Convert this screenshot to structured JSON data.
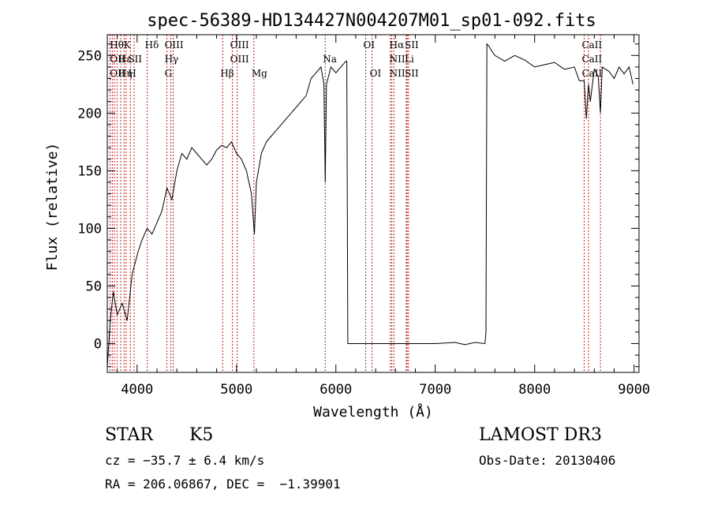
{
  "chart_data": {
    "type": "line",
    "title": "spec-56389-HD134427N004207M01_sp01-092.fits",
    "xlabel": "Wavelength (Å)",
    "ylabel": "Flux (relative)",
    "xlim": [
      3700,
      9050
    ],
    "ylim": [
      -25,
      268
    ],
    "x_ticks": [
      4000,
      5000,
      6000,
      7000,
      8000,
      9000
    ],
    "y_ticks": [
      0,
      50,
      100,
      150,
      200,
      250
    ],
    "grid": false,
    "series": [
      {
        "x": [
          3700,
          3730,
          3760,
          3800,
          3850,
          3900,
          3950,
          3980,
          4010,
          4050,
          4100,
          4150,
          4200,
          4250,
          4300,
          4350,
          4400,
          4450,
          4500,
          4550,
          4600,
          4650,
          4700,
          4750,
          4800,
          4850,
          4900,
          4950,
          5000,
          5050,
          5100,
          5150,
          5180,
          5200,
          5250,
          5300,
          5350,
          5400,
          5450,
          5500,
          5550,
          5600,
          5650,
          5700,
          5750,
          5800,
          5850,
          5880,
          5893,
          5905,
          5950,
          6000,
          6050,
          6100,
          6110,
          6120,
          6150,
          6500,
          7000,
          7200,
          7300,
          7400,
          7500,
          7510,
          7520,
          7540,
          7560,
          7600,
          7700,
          7800,
          7900,
          8000,
          8100,
          8200,
          8300,
          8400,
          8450,
          8498,
          8520,
          8542,
          8560,
          8600,
          8640,
          8662,
          8680,
          8750,
          8800,
          8850,
          8900,
          8950,
          8990
        ],
        "values": [
          -20,
          20,
          45,
          25,
          35,
          20,
          60,
          70,
          80,
          90,
          100,
          95,
          105,
          115,
          135,
          125,
          150,
          165,
          160,
          170,
          165,
          160,
          155,
          160,
          168,
          172,
          170,
          175,
          165,
          160,
          150,
          130,
          95,
          140,
          165,
          175,
          180,
          185,
          190,
          195,
          200,
          205,
          210,
          215,
          230,
          235,
          240,
          225,
          140,
          225,
          240,
          235,
          240,
          245,
          245,
          0,
          0,
          0,
          0,
          1,
          -1,
          1,
          0,
          10,
          260,
          258,
          255,
          250,
          245,
          250,
          246,
          240,
          242,
          244,
          238,
          240,
          228,
          228,
          195,
          225,
          210,
          238,
          232,
          200,
          240,
          236,
          230,
          240,
          234,
          240,
          225
        ]
      }
    ],
    "line_labels": [
      {
        "x": 3750,
        "lines": [
          "Hθ",
          "OII",
          "OII"
        ]
      },
      {
        "x": 3834,
        "lines": [
          "",
          "Hε",
          "Hη"
        ]
      },
      {
        "x": 3889,
        "lines": [
          "K",
          "",
          ""
        ]
      },
      {
        "x": 3933,
        "lines": [
          "",
          "SII",
          "H"
        ]
      },
      {
        "x": 4102,
        "lines": [
          "Hδ",
          "",
          ""
        ]
      },
      {
        "x": 4300,
        "lines": [
          "OIII",
          "Hγ",
          "G"
        ]
      },
      {
        "x": 4861,
        "lines": [
          "",
          "",
          "Hβ"
        ]
      },
      {
        "x": 4959,
        "lines": [
          "OIII",
          "OIII",
          ""
        ]
      },
      {
        "x": 5175,
        "lines": [
          "",
          "",
          "Mg"
        ]
      },
      {
        "x": 5893,
        "lines": [
          "",
          "Na",
          ""
        ]
      },
      {
        "x": 6300,
        "lines": [
          "OI",
          "",
          ""
        ]
      },
      {
        "x": 6364,
        "lines": [
          "",
          "",
          "OI"
        ]
      },
      {
        "x": 6563,
        "lines": [
          "Hα",
          "NII",
          "NII"
        ]
      },
      {
        "x": 6717,
        "lines": [
          "SII",
          "Li",
          "SII"
        ]
      },
      {
        "x": 8498,
        "lines": [
          "CaII",
          "CaII",
          "CaII"
        ]
      }
    ],
    "line_markers": [
      3727,
      3750,
      3771,
      3798,
      3835,
      3869,
      3889,
      3933,
      3970,
      4102,
      4300,
      4340,
      4363,
      4861,
      4959,
      5007,
      5175,
      5893,
      6300,
      6364,
      6548,
      6563,
      6584,
      6708,
      6717,
      6731,
      8498,
      8542,
      8662
    ]
  },
  "info": {
    "class_label": "STAR",
    "subclass": "K5",
    "cz": "cz = −35.7 ± 6.4 km/s",
    "coords": "RA = 206.06867, DEC =  −1.39901",
    "survey": "LAMOST DR3",
    "obs_date": "Obs-Date: 20130406"
  }
}
